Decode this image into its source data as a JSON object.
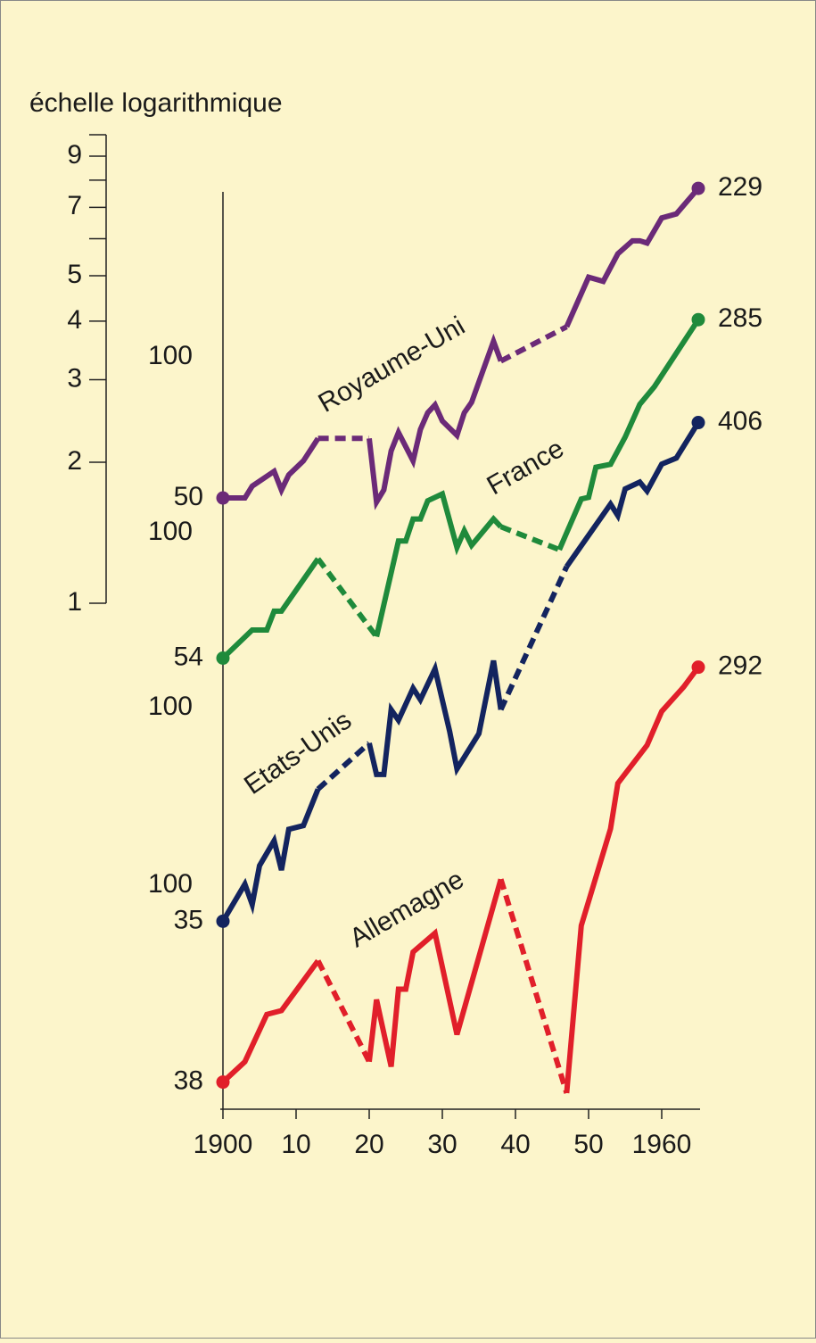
{
  "chart_data": {
    "type": "line",
    "log_scale": true,
    "scale_label": "échelle logarithmique",
    "scale_ticks": [
      1,
      2,
      3,
      4,
      5,
      7,
      9
    ],
    "scale_minor_ticks": [
      6,
      8,
      10
    ],
    "xlim": [
      1900,
      1965
    ],
    "xticks": [
      1900,
      {
        "value": 1910,
        "label": "10"
      },
      {
        "value": 1920,
        "label": "20"
      },
      {
        "value": 1930,
        "label": "30"
      },
      {
        "value": 1940,
        "label": "40"
      },
      {
        "value": 1950,
        "label": "50"
      },
      1960
    ],
    "series": [
      {
        "name": "Royaume-Uni",
        "color": "#6b2a78",
        "yticks": [
          100
        ],
        "x": [
          1900,
          1903,
          1904,
          1907,
          1908,
          1909,
          1911,
          1913,
          1920,
          1921,
          1922,
          1923,
          1924,
          1926,
          1927,
          1928,
          1929,
          1930,
          1932,
          1933,
          1934,
          1937,
          1938,
          1947,
          1950,
          1952,
          1954,
          1956,
          1957,
          1958,
          1960,
          1962,
          1965
        ],
        "values": [
          50,
          50,
          53,
          57,
          52,
          56,
          60,
          67,
          67,
          49,
          52,
          63,
          69,
          60,
          70,
          76,
          79,
          73,
          68,
          76,
          80,
          108,
          98,
          116,
          148,
          145,
          166,
          177,
          177,
          175,
          198,
          202,
          229
        ],
        "dashed_segments": [
          7,
          22
        ]
      },
      {
        "name": "France",
        "color": "#1f8a3b",
        "yticks": [
          100
        ],
        "x": [
          1900,
          1904,
          1906,
          1907,
          1908,
          1913,
          1921,
          1924,
          1925,
          1926,
          1927,
          1928,
          1930,
          1932,
          1933,
          1934,
          1937,
          1938,
          1946,
          1949,
          1950,
          1951,
          1953,
          1955,
          1957,
          1959,
          1965
        ],
        "values": [
          54,
          62,
          62,
          68,
          68,
          88,
          60,
          96,
          96,
          107,
          107,
          117,
          121,
          93,
          101,
          94,
          107,
          103,
          92,
          118,
          119,
          138,
          140,
          160,
          188,
          205,
          285
        ],
        "dashed_segments": [
          5,
          17
        ]
      },
      {
        "name": "Etats-Unis",
        "color": "#13245f",
        "yticks": [
          100
        ],
        "x": [
          1900,
          1903,
          1904,
          1905,
          1907,
          1908,
          1909,
          1911,
          1913,
          1920,
          1921,
          1922,
          1923,
          1924,
          1926,
          1927,
          1929,
          1931,
          1932,
          1935,
          1937,
          1938,
          1947,
          1953,
          1954,
          1955,
          1957,
          1958,
          1960,
          1962,
          1965
        ],
        "values": [
          35,
          42,
          38,
          46,
          52,
          45,
          55,
          56,
          67,
          84,
          72,
          72,
          99,
          94,
          110,
          104,
          121,
          89,
          74,
          88,
          126,
          99,
          200,
          272,
          257,
          293,
          303,
          290,
          331,
          341,
          406
        ],
        "dashed_segments": [
          8,
          21
        ]
      },
      {
        "name": "Allemagne",
        "color": "#e11f2a",
        "yticks": [
          100
        ],
        "x": [
          1900,
          1903,
          1906,
          1908,
          1913,
          1920,
          1921,
          1923,
          1924,
          1925,
          1926,
          1929,
          1932,
          1938,
          1947,
          1949,
          1953,
          1954,
          1958,
          1960,
          1963,
          1965
        ],
        "values": [
          38,
          42,
          53,
          54,
          69,
          42,
          57,
          41,
          60,
          60,
          72,
          79,
          48,
          103,
          36,
          82,
          132,
          165,
          199,
          235,
          265,
          292
        ],
        "dashed_segments": [
          4,
          13
        ]
      }
    ]
  }
}
